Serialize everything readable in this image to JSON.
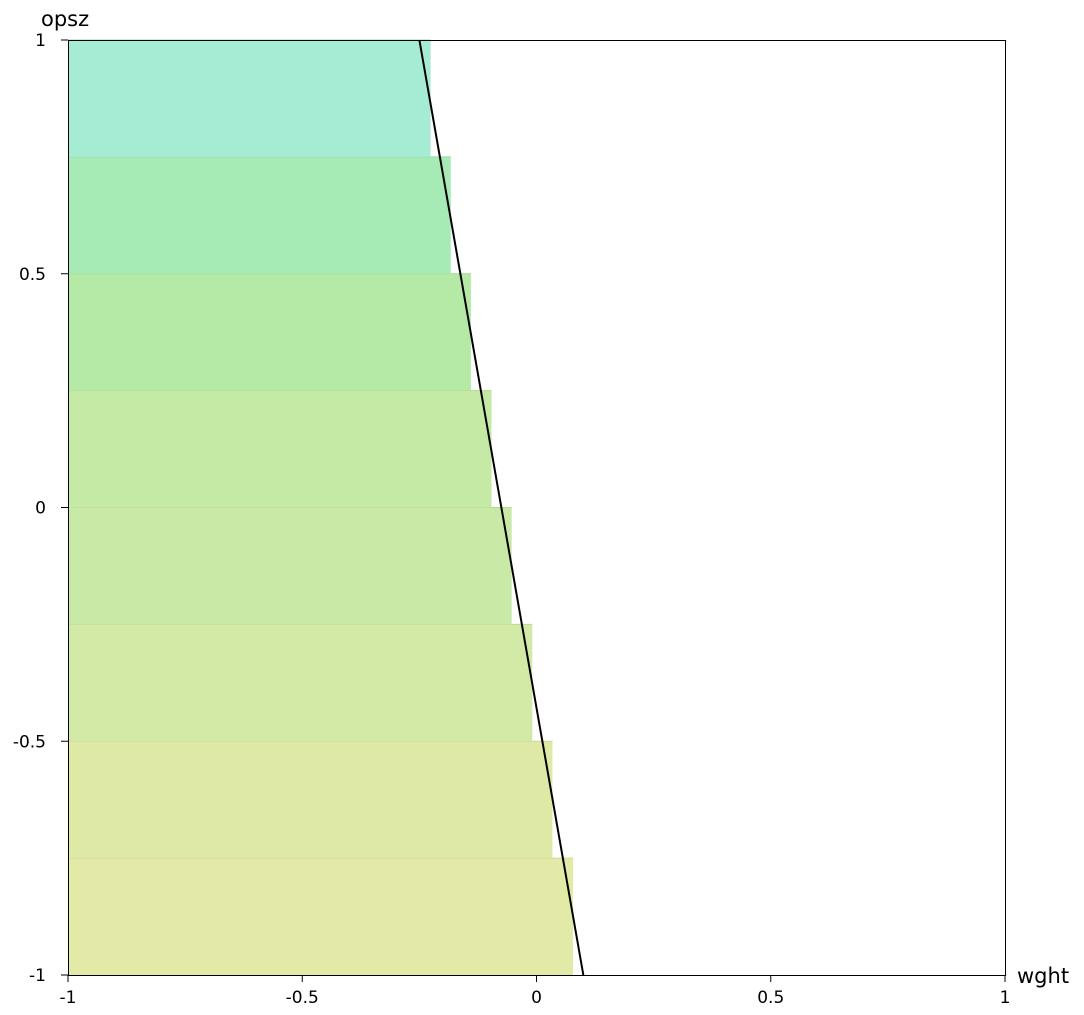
{
  "chart_data": {
    "type": "area",
    "xlabel": "wght",
    "ylabel": "opsz",
    "xlim": [
      -1,
      1
    ],
    "ylim": [
      -1,
      1
    ],
    "grid": false,
    "x_ticks": [
      -1,
      -0.5,
      0,
      0.5,
      1
    ],
    "y_ticks": [
      -1,
      -0.5,
      0,
      0.5,
      1
    ],
    "x_tick_labels": [
      "-1",
      "-0.5",
      "0",
      "0.5",
      "1"
    ],
    "y_tick_labels": [
      "-1",
      "-0.5",
      "0",
      "0.5",
      "1"
    ],
    "bands": [
      {
        "y0": -1.0,
        "y1": -0.75,
        "x_end": 0.078,
        "color": "#e3e9a6"
      },
      {
        "y0": -0.75,
        "y1": -0.5,
        "x_end": 0.034,
        "color": "#dfe9a6"
      },
      {
        "y0": -0.5,
        "y1": -0.25,
        "x_end": -0.009,
        "color": "#d3eaa6"
      },
      {
        "y0": -0.25,
        "y1": 0.0,
        "x_end": -0.053,
        "color": "#c8eaa6"
      },
      {
        "y0": 0.0,
        "y1": 0.25,
        "x_end": -0.096,
        "color": "#c4eaa6"
      },
      {
        "y0": 0.25,
        "y1": 0.5,
        "x_end": -0.14,
        "color": "#b4eaa6"
      },
      {
        "y0": 0.5,
        "y1": 0.75,
        "x_end": -0.183,
        "color": "#a6ebb5"
      },
      {
        "y0": 0.75,
        "y1": 1.0,
        "x_end": -0.226,
        "color": "#a6ebd3"
      }
    ],
    "line": {
      "x": [
        0.1,
        -0.25
      ],
      "y": [
        -1,
        1
      ],
      "color": "#000000"
    }
  }
}
